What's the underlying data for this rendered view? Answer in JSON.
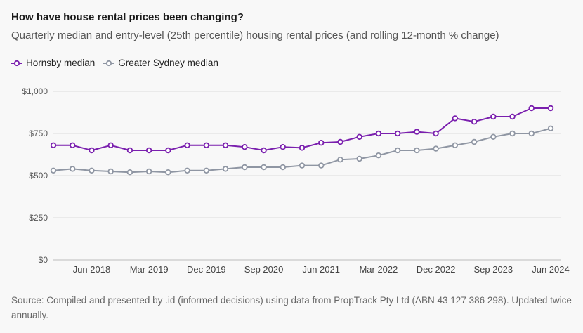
{
  "header": {
    "title": "How have house rental prices been changing?",
    "subtitle": "Quarterly median and entry-level (25th percentile) housing rental prices (and rolling 12-month % change)"
  },
  "legend": [
    {
      "label": "Hornsby median",
      "color": "#7a1fae"
    },
    {
      "label": "Greater Sydney median",
      "color": "#8f96a3"
    }
  ],
  "footer": {
    "source": "Source: Compiled and presented by .id (informed decisions) using data from PropTrack Pty Ltd (ABN 43 127 386 298). Updated twice annually."
  },
  "chart_data": {
    "type": "line",
    "title": "How have house rental prices been changing?",
    "ylim": [
      0,
      1000
    ],
    "yticks": [
      0,
      250,
      500,
      750,
      1000
    ],
    "ytick_labels": [
      "$0",
      "$250",
      "$500",
      "$750",
      "$1,000"
    ],
    "xtick_labels": [
      "Jun 2018",
      "Mar 2019",
      "Dec 2019",
      "Sep 2020",
      "Jun 2021",
      "Mar 2022",
      "Dec 2022",
      "Sep 2023",
      "Jun 2024"
    ],
    "xtick_indices": [
      2,
      5,
      8,
      11,
      14,
      17,
      20,
      23,
      26
    ],
    "grid": "horizontal",
    "legend_position": "top-left",
    "series": [
      {
        "name": "Hornsby median",
        "color": "#7a1fae",
        "values": [
          680,
          680,
          650,
          680,
          650,
          650,
          650,
          680,
          680,
          680,
          670,
          650,
          670,
          665,
          695,
          700,
          730,
          750,
          750,
          760,
          750,
          840,
          820,
          850,
          850,
          900,
          900
        ]
      },
      {
        "name": "Greater Sydney median",
        "color": "#8f96a3",
        "values": [
          530,
          540,
          530,
          525,
          520,
          525,
          520,
          530,
          530,
          540,
          550,
          550,
          550,
          560,
          560,
          595,
          600,
          620,
          650,
          650,
          660,
          680,
          700,
          730,
          750,
          750,
          780
        ]
      }
    ]
  }
}
